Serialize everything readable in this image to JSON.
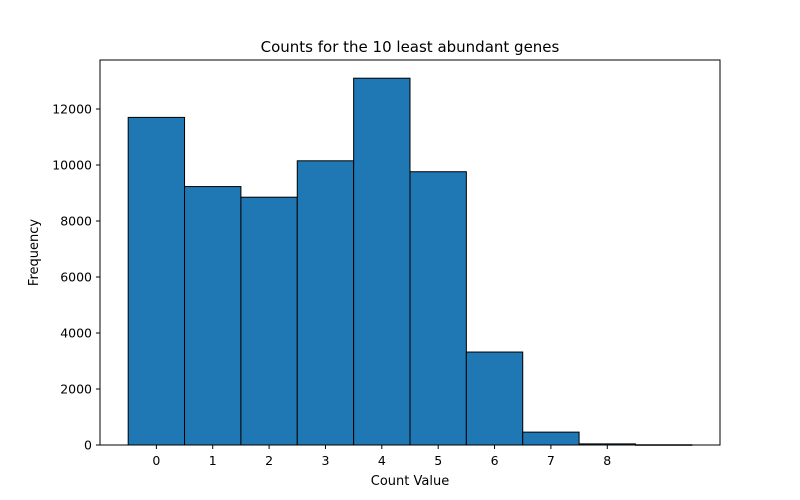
{
  "chart_data": {
    "type": "bar",
    "title": "Counts for the 10 least abundant genes",
    "xlabel": "Count Value",
    "ylabel": "Frequency",
    "xlim": [
      -1.0,
      10.0
    ],
    "ylim": [
      0,
      13750
    ],
    "x_ticks": [
      0,
      1,
      2,
      3,
      4,
      5,
      6,
      7,
      8
    ],
    "y_ticks": [
      0,
      2000,
      4000,
      6000,
      8000,
      10000,
      12000
    ],
    "bars": [
      {
        "x": 0,
        "value": 11700
      },
      {
        "x": 1,
        "value": 9230
      },
      {
        "x": 2,
        "value": 8850
      },
      {
        "x": 3,
        "value": 10150
      },
      {
        "x": 4,
        "value": 13100
      },
      {
        "x": 5,
        "value": 9760
      },
      {
        "x": 6,
        "value": 3320
      },
      {
        "x": 7,
        "value": 460
      },
      {
        "x": 8,
        "value": 40
      },
      {
        "x": 9,
        "value": 8
      }
    ],
    "bar_color": "#1f77b4",
    "edge_color": "#000000",
    "grid": false,
    "legend": "none"
  }
}
